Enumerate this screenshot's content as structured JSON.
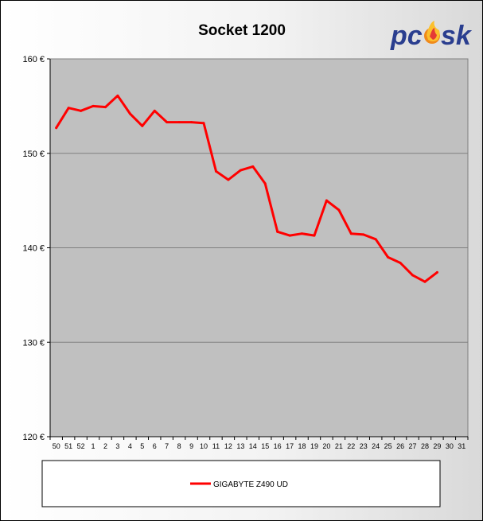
{
  "brand": {
    "logo_text": "pc·sk",
    "colors": {
      "pc": "#2a3e8f",
      "flame": "#f08a1a",
      "sk": "#2a3e8f"
    }
  },
  "chart_data": {
    "type": "line",
    "title": "Socket 1200",
    "xlabel": "",
    "ylabel": "",
    "ylim": [
      120,
      160
    ],
    "yticks": [
      120,
      130,
      140,
      150,
      160
    ],
    "ytick_suffix": " €",
    "grid": true,
    "plot_background": "#c0c0c0",
    "legend_position": "bottom",
    "categories": [
      "50",
      "51",
      "52",
      "1",
      "2",
      "3",
      "4",
      "5",
      "6",
      "7",
      "8",
      "9",
      "10",
      "11",
      "12",
      "13",
      "14",
      "15",
      "16",
      "17",
      "18",
      "19",
      "20",
      "21",
      "22",
      "23",
      "24",
      "25",
      "26",
      "27",
      "28",
      "29",
      "30",
      "31"
    ],
    "series": [
      {
        "name": "GIGABYTE Z490 UD",
        "color": "#ff0000",
        "values": [
          152.7,
          154.8,
          154.5,
          155.0,
          154.9,
          156.1,
          154.2,
          152.9,
          154.5,
          153.3,
          153.3,
          153.3,
          153.2,
          148.1,
          147.2,
          148.2,
          148.6,
          146.8,
          141.7,
          141.3,
          141.5,
          141.3,
          145.0,
          144.0,
          141.5,
          141.4,
          140.9,
          139.0,
          138.4,
          137.1,
          136.4,
          137.4,
          null,
          null
        ]
      }
    ]
  }
}
